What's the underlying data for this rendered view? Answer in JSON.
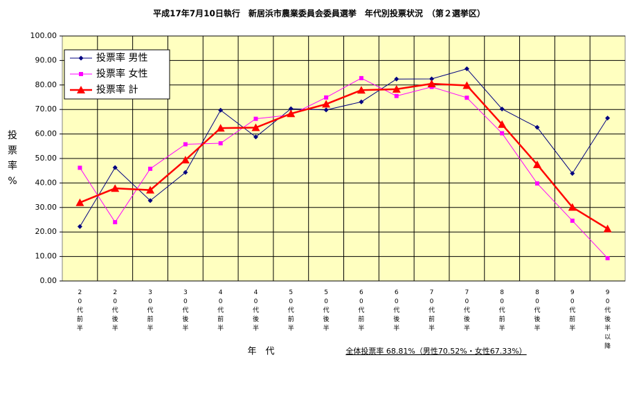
{
  "chart_data": {
    "type": "line",
    "title": "平成17年7月10日執行　新居浜市農業委員会委員選挙　年代別投票状況　（第２選挙区）",
    "y_label": "投票率%",
    "x_label": "年　代",
    "annotation": "全体投票率 68.81%（男性70.52%・女性67.33%）",
    "categories": [
      "20代前半",
      "20代後半",
      "30代前半",
      "30代後半",
      "40代前半",
      "40代後半",
      "50代前半",
      "50代後半",
      "60代前半",
      "60代後半",
      "70代前半",
      "70代後半",
      "80代前半",
      "80代後半",
      "90代前半",
      "90代後半以降"
    ],
    "series": [
      {
        "name": "投票率 男性",
        "color": "#000080",
        "marker": "diamond",
        "values": [
          22.2,
          46.3,
          32.8,
          44.3,
          69.7,
          58.8,
          70.3,
          69.8,
          73.1,
          82.4,
          82.5,
          86.6,
          70.2,
          62.7,
          43.9,
          66.5
        ]
      },
      {
        "name": "投票率 女性",
        "color": "#ff00ff",
        "marker": "square",
        "values": [
          46.2,
          24.0,
          45.8,
          55.8,
          56.2,
          66.2,
          67.8,
          74.9,
          82.8,
          75.5,
          79.2,
          74.8,
          60.3,
          39.8,
          24.6,
          9.3
        ]
      },
      {
        "name": "投票率 計",
        "color": "#ff0000",
        "marker": "triangle",
        "values": [
          32.0,
          37.8,
          37.1,
          49.4,
          62.4,
          62.6,
          68.3,
          72.2,
          77.9,
          78.3,
          80.5,
          79.8,
          63.9,
          47.5,
          30.1,
          21.3
        ]
      }
    ],
    "ylim": [
      0,
      100
    ],
    "yticks": [
      {
        "value": 0,
        "label": "0.00"
      },
      {
        "value": 10,
        "label": "10.00"
      },
      {
        "value": 20,
        "label": "20.00"
      },
      {
        "value": 30,
        "label": "30.00"
      },
      {
        "value": 40,
        "label": "40.00"
      },
      {
        "value": 50,
        "label": "50.00"
      },
      {
        "value": 60,
        "label": "60.00"
      },
      {
        "value": 70,
        "label": "70.00"
      },
      {
        "value": 80,
        "label": "80.00"
      },
      {
        "value": 90,
        "label": "90.00"
      },
      {
        "value": 100,
        "label": "100.00"
      }
    ],
    "grid": true,
    "legend_position": "upper-left"
  }
}
